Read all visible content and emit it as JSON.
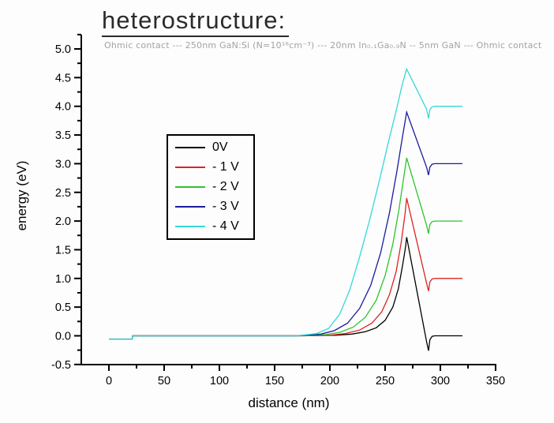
{
  "title": {
    "text": "heterostructure:"
  },
  "subtitle": {
    "text": "Ohmic contact --- 250nm GaN:Si (N=10¹⁸cm⁻³) --- 20nm In₀.₁Ga₀.₉N -- 5nm GaN --- Ohmic contact"
  },
  "legend": {
    "position": "upper-left-inside",
    "items": [
      {
        "label": "0V",
        "color": "#000000"
      },
      {
        "label": "- 1 V",
        "color": "#dd2222"
      },
      {
        "label": "- 2 V",
        "color": "#2cc42c"
      },
      {
        "label": "- 3 V",
        "color": "#1b1b9e"
      },
      {
        "label": "- 4 V",
        "color": "#35d8d8"
      }
    ]
  },
  "chart_data": {
    "type": "line",
    "title": "heterostructure:",
    "subtitle": "Ohmic contact --- 250nm GaN:Si (N=10¹⁸cm⁻³) --- 20nm In₀.₁Ga₀.₉N -- 5nm GaN --- Ohmic contact",
    "xlabel": "distance (nm)",
    "ylabel": "energy (eV)",
    "xlim": [
      -25,
      350
    ],
    "ylim": [
      -0.5,
      5.0
    ],
    "grid": false,
    "x_axis": {
      "major_ticks": [
        {
          "v": 0,
          "label": "0"
        },
        {
          "v": 50,
          "label": "50"
        },
        {
          "v": 100,
          "label": "100"
        },
        {
          "v": 150,
          "label": "150"
        },
        {
          "v": 200,
          "label": "200"
        },
        {
          "v": 250,
          "label": "250"
        },
        {
          "v": 300,
          "label": "300"
        },
        {
          "v": 350,
          "label": "350"
        }
      ],
      "minor_ticks": [
        25,
        75,
        125,
        175,
        225,
        275,
        325
      ]
    },
    "y_axis": {
      "major_ticks": [
        {
          "v": 5.0,
          "label": "5.0"
        },
        {
          "v": 4.5,
          "label": "4.5"
        },
        {
          "v": 4.0,
          "label": "4.0"
        },
        {
          "v": 3.5,
          "label": "3.5"
        },
        {
          "v": 3.0,
          "label": "3.0"
        },
        {
          "v": 2.5,
          "label": "2.5"
        },
        {
          "v": 2.0,
          "label": "2.0"
        },
        {
          "v": 1.5,
          "label": "1.5"
        },
        {
          "v": 1.0,
          "label": "1.0"
        },
        {
          "v": 0.5,
          "label": "0.5"
        },
        {
          "v": 0.0,
          "label": "0.0"
        },
        {
          "v": -0.5,
          "label": "-0.5"
        }
      ],
      "minor_ticks": [
        5.25,
        4.75,
        4.25,
        3.75,
        3.25,
        2.75,
        2.25,
        1.75,
        1.25,
        0.75,
        0.25,
        -0.25
      ]
    },
    "series": [
      {
        "name": "0V",
        "color": "#000000",
        "plateau_eV": 0.0,
        "peak_eV": 1.72,
        "peak_nm": 269.5,
        "points": [
          [
            0,
            -0.06
          ],
          [
            21,
            -0.06
          ],
          [
            21.5,
            0
          ],
          [
            60,
            0
          ],
          [
            120,
            0
          ],
          [
            170,
            0
          ],
          [
            205,
            0.01
          ],
          [
            220,
            0.03
          ],
          [
            232,
            0.07
          ],
          [
            242,
            0.14
          ],
          [
            250,
            0.27
          ],
          [
            257,
            0.5
          ],
          [
            262,
            0.82
          ],
          [
            266,
            1.25
          ],
          [
            268.5,
            1.55
          ],
          [
            269.5,
            1.72
          ],
          [
            287.5,
            -0.1
          ],
          [
            289.3,
            -0.26
          ],
          [
            290.5,
            -0.07
          ],
          [
            292.5,
            -0.01
          ],
          [
            295,
            0
          ],
          [
            320,
            0
          ]
        ]
      },
      {
        "name": "- 1 V",
        "color": "#dd2222",
        "plateau_eV": 1.0,
        "peak_eV": 2.4,
        "peak_nm": 269.5,
        "points": [
          [
            0,
            -0.06
          ],
          [
            21,
            -0.06
          ],
          [
            21.5,
            0
          ],
          [
            60,
            0
          ],
          [
            120,
            0
          ],
          [
            170,
            0
          ],
          [
            200,
            0.01
          ],
          [
            214,
            0.04
          ],
          [
            227,
            0.1
          ],
          [
            238,
            0.22
          ],
          [
            247,
            0.42
          ],
          [
            254,
            0.72
          ],
          [
            260,
            1.12
          ],
          [
            264.5,
            1.62
          ],
          [
            268,
            2.12
          ],
          [
            269.5,
            2.4
          ],
          [
            287.5,
            0.92
          ],
          [
            289.3,
            0.78
          ],
          [
            290.5,
            0.94
          ],
          [
            292.5,
            0.99
          ],
          [
            295,
            1.0
          ],
          [
            320,
            1.0
          ]
        ]
      },
      {
        "name": "- 2 V",
        "color": "#2cc42c",
        "plateau_eV": 2.0,
        "peak_eV": 3.1,
        "peak_nm": 269.5,
        "points": [
          [
            0,
            -0.06
          ],
          [
            21,
            -0.06
          ],
          [
            21.5,
            0
          ],
          [
            60,
            0
          ],
          [
            120,
            0
          ],
          [
            170,
            0
          ],
          [
            196,
            0.02
          ],
          [
            209,
            0.06
          ],
          [
            221,
            0.15
          ],
          [
            232,
            0.32
          ],
          [
            242,
            0.62
          ],
          [
            250,
            1.05
          ],
          [
            257,
            1.6
          ],
          [
            262.5,
            2.2
          ],
          [
            267,
            2.78
          ],
          [
            269.5,
            3.1
          ],
          [
            287.5,
            1.93
          ],
          [
            289.3,
            1.78
          ],
          [
            290.5,
            1.94
          ],
          [
            292.5,
            1.99
          ],
          [
            295,
            2.0
          ],
          [
            320,
            2.0
          ]
        ]
      },
      {
        "name": "- 3 V",
        "color": "#1b1b9e",
        "plateau_eV": 3.0,
        "peak_eV": 3.9,
        "peak_nm": 269.5,
        "points": [
          [
            0,
            -0.06
          ],
          [
            21,
            -0.06
          ],
          [
            21.5,
            0
          ],
          [
            60,
            0
          ],
          [
            120,
            0
          ],
          [
            170,
            0
          ],
          [
            192,
            0.03
          ],
          [
            204,
            0.09
          ],
          [
            216,
            0.22
          ],
          [
            227,
            0.48
          ],
          [
            237,
            0.88
          ],
          [
            246,
            1.45
          ],
          [
            254,
            2.15
          ],
          [
            260.5,
            2.85
          ],
          [
            266,
            3.5
          ],
          [
            269.5,
            3.9
          ],
          [
            287.5,
            2.94
          ],
          [
            289.3,
            2.8
          ],
          [
            290.5,
            2.94
          ],
          [
            292.5,
            2.99
          ],
          [
            295,
            3.0
          ],
          [
            320,
            3.0
          ]
        ]
      },
      {
        "name": "- 4 V",
        "color": "#35d8d8",
        "plateau_eV": 4.0,
        "peak_eV": 4.65,
        "peak_nm": 269.5,
        "points": [
          [
            0,
            -0.06
          ],
          [
            21,
            -0.06
          ],
          [
            21.5,
            0
          ],
          [
            60,
            0
          ],
          [
            120,
            0
          ],
          [
            170,
            0
          ],
          [
            188,
            0.04
          ],
          [
            199,
            0.13
          ],
          [
            209,
            0.38
          ],
          [
            218,
            0.8
          ],
          [
            227,
            1.38
          ],
          [
            236,
            2.02
          ],
          [
            245,
            2.72
          ],
          [
            253,
            3.38
          ],
          [
            260,
            3.92
          ],
          [
            265.5,
            4.38
          ],
          [
            269.5,
            4.65
          ],
          [
            287.5,
            3.95
          ],
          [
            289.3,
            3.79
          ],
          [
            290.5,
            3.94
          ],
          [
            292.5,
            3.99
          ],
          [
            295,
            4.0
          ],
          [
            320,
            4.0
          ]
        ]
      }
    ]
  }
}
